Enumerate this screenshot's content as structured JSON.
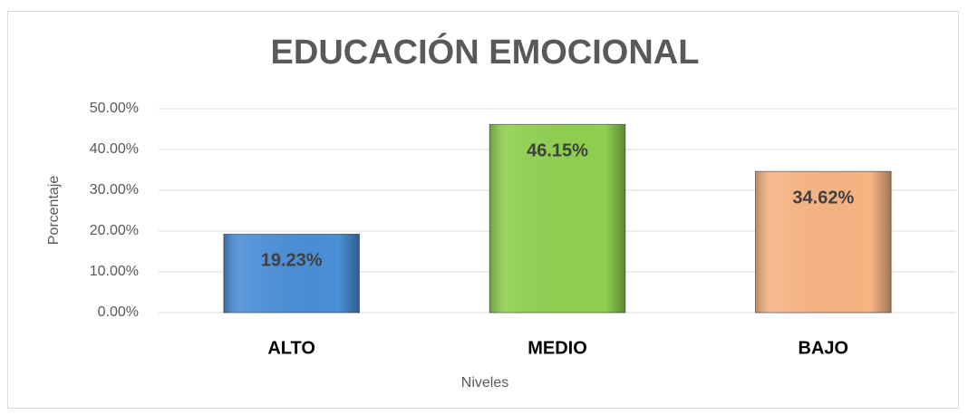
{
  "chart_data": {
    "type": "bar",
    "title": "EDUCACIÓN EMOCIONAL",
    "x_label": "Niveles",
    "y_label": "Porcentaje",
    "categories": [
      "ALTO",
      "MEDIO",
      "BAJO"
    ],
    "values": [
      19.23,
      46.15,
      34.62
    ],
    "value_labels": [
      "19.23%",
      "46.15%",
      "34.62%"
    ],
    "colors": [
      "#4a8fd8",
      "#8fd14f",
      "#f8b483"
    ],
    "ylim": [
      0,
      50
    ],
    "yticks": [
      {
        "value": 0,
        "label": "0.00%"
      },
      {
        "value": 10,
        "label": "10.00%"
      },
      {
        "value": 20,
        "label": "20.00%"
      },
      {
        "value": 30,
        "label": "30.00%"
      },
      {
        "value": 40,
        "label": "40.00%"
      },
      {
        "value": 50,
        "label": "50.00%"
      }
    ],
    "grid": true
  }
}
